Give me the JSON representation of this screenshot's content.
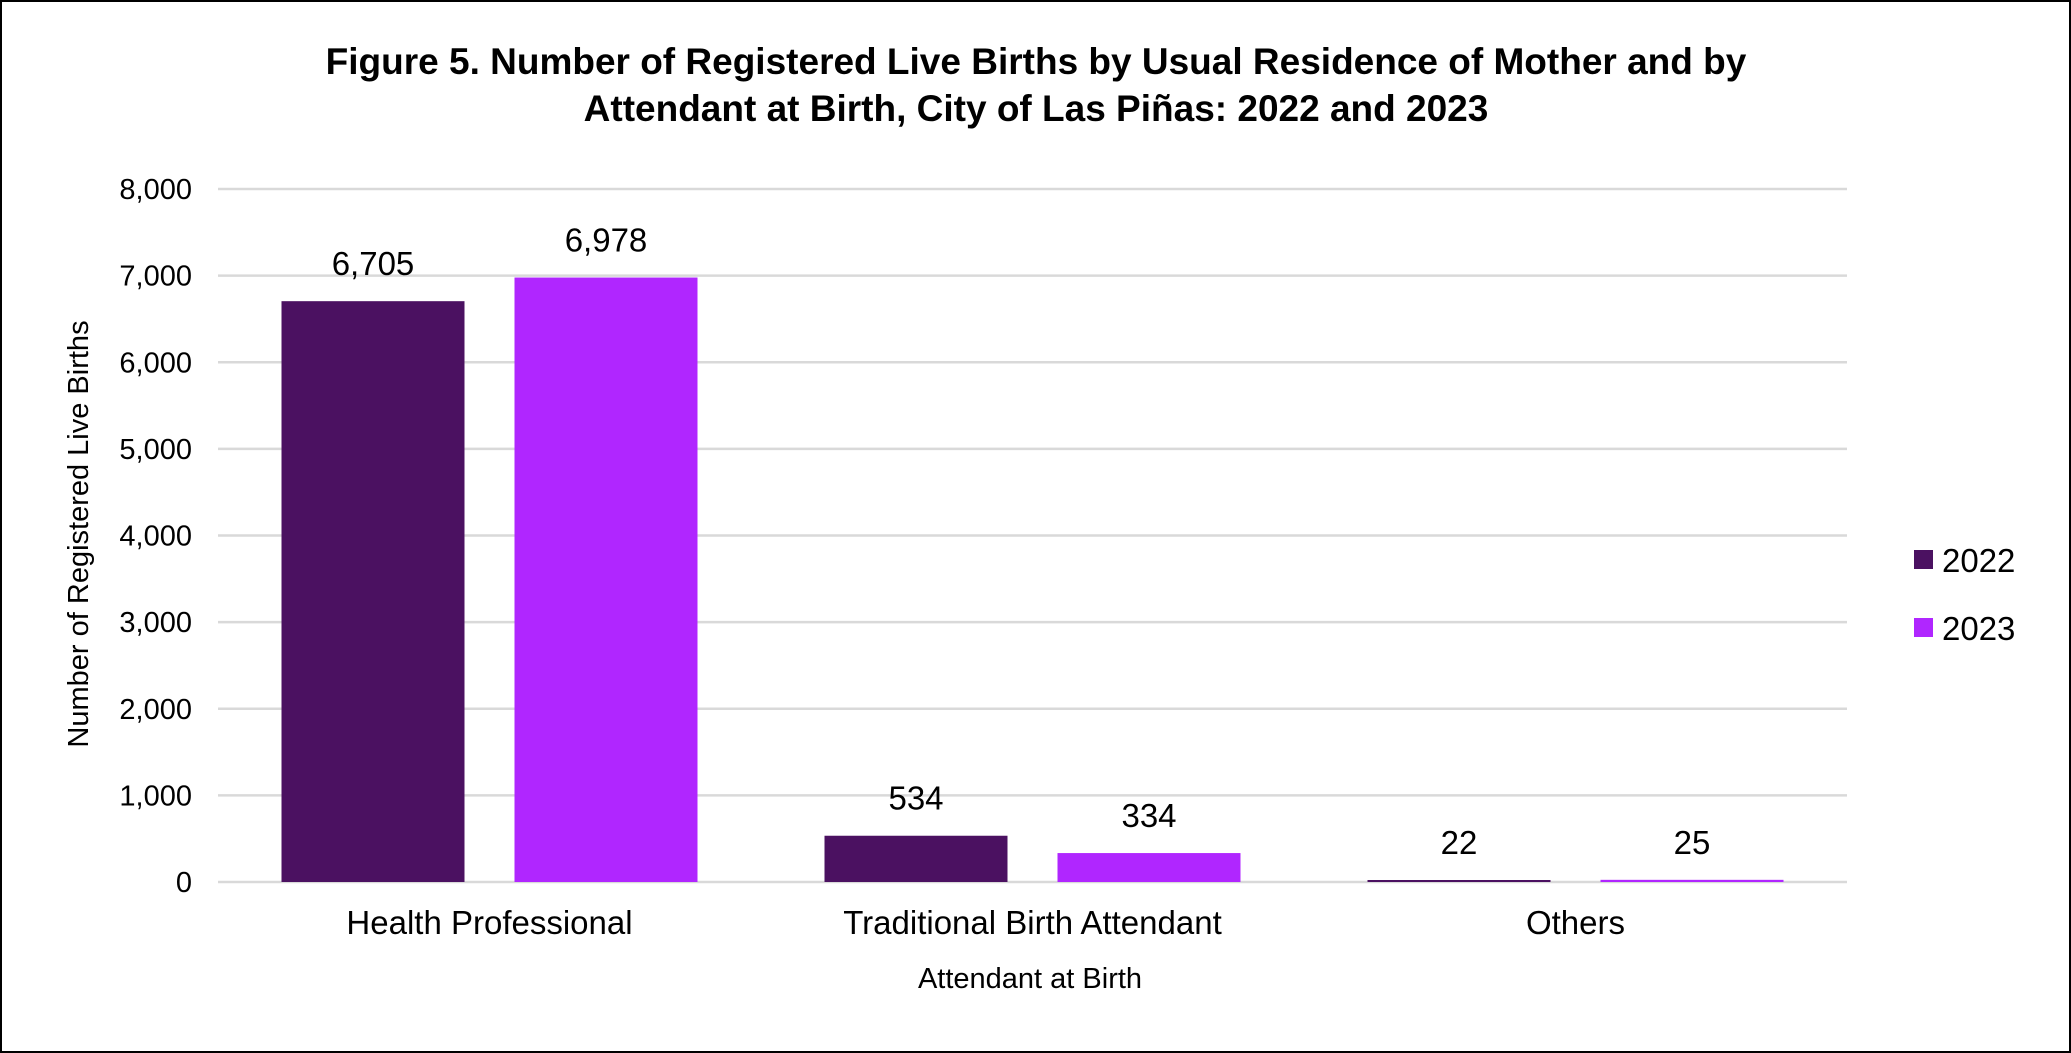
{
  "chart_data": {
    "type": "bar",
    "title_line1": "Figure 5. Number of Registered Live Births by Usual Residence of Mother and by",
    "title_line2": "Attendant at Birth, City of Las Piñas: 2022 and 2023",
    "xlabel": "Attendant at Birth",
    "ylabel": "Number of Registered Live Births",
    "categories": [
      "Health Professional",
      "Traditional Birth Attendant",
      "Others"
    ],
    "series": [
      {
        "name": "2022",
        "color": "#4b1161",
        "values": [
          6705,
          534,
          22
        ],
        "labels": [
          "6,705",
          "534",
          "22"
        ]
      },
      {
        "name": "2023",
        "color": "#b026ff",
        "values": [
          6978,
          334,
          25
        ],
        "labels": [
          "6,978",
          "334",
          "25"
        ]
      }
    ],
    "ylim": [
      0,
      8000
    ],
    "yticks": [
      0,
      1000,
      2000,
      3000,
      4000,
      5000,
      6000,
      7000,
      8000
    ],
    "ytick_labels": [
      "0",
      "1,000",
      "2,000",
      "3,000",
      "4,000",
      "5,000",
      "6,000",
      "7,000",
      "8,000"
    ],
    "grid": true,
    "legend_position": "right"
  }
}
